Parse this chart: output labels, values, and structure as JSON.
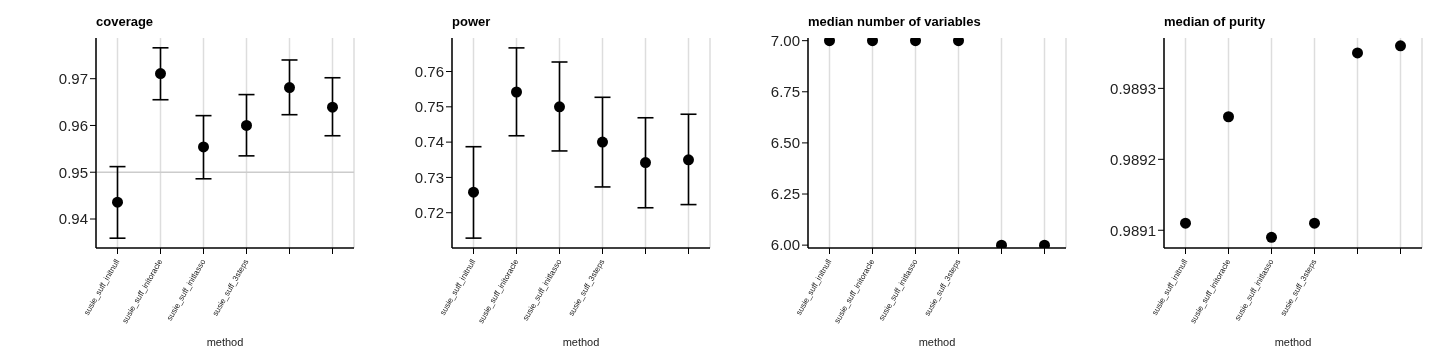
{
  "chart_data": [
    {
      "type": "scatter",
      "title": "coverage",
      "xlabel": "method",
      "categories": [
        "susie_suff_initnull",
        "susie_suff_initoracle",
        "susie_suff_initlasso",
        "susie_suff_3steps",
        null,
        null
      ],
      "values": [
        0.9436,
        0.9711,
        0.9554,
        0.96,
        0.9681,
        0.9639
      ],
      "errors": [
        [
          0.9359,
          0.9512
        ],
        [
          0.9655,
          0.9766
        ],
        [
          0.9486,
          0.9621
        ],
        [
          0.9535,
          0.9666
        ],
        [
          0.9623,
          0.974
        ],
        [
          0.9578,
          0.9702
        ]
      ],
      "color": "#000000",
      "ylim": [
        0.9338,
        0.9787
      ],
      "yticks": [
        0.94,
        0.95,
        0.96,
        0.97
      ],
      "ref_lines": [
        {
          "axis": "y",
          "value": 0.95,
          "color": "#cccccc"
        }
      ],
      "grid": "x",
      "marker": "circle"
    },
    {
      "type": "scatter",
      "title": "power",
      "xlabel": "method",
      "categories": [
        "susie_suff_initnull",
        "susie_suff_initoracle",
        "susie_suff_initlasso",
        "susie_suff_3steps",
        null,
        null
      ],
      "values": [
        0.7258,
        0.7542,
        0.75,
        0.74,
        0.7342,
        0.735
      ],
      "errors": [
        [
          0.7128,
          0.7387
        ],
        [
          0.7418,
          0.7667
        ],
        [
          0.7375,
          0.7627
        ],
        [
          0.7273,
          0.7527
        ],
        [
          0.7214,
          0.7469
        ],
        [
          0.7223,
          0.7479
        ]
      ],
      "color": "#000000",
      "ylim": [
        0.71,
        0.7695
      ],
      "yticks": [
        0.72,
        0.73,
        0.74,
        0.75,
        0.76
      ],
      "grid": "x",
      "marker": "circle"
    },
    {
      "type": "scatter",
      "title": "median number of variables",
      "xlabel": "method",
      "categories": [
        "susie_suff_initnull",
        "susie_suff_initoracle",
        "susie_suff_initlasso",
        "susie_suff_3steps",
        null,
        null
      ],
      "values": [
        7,
        7,
        7,
        7,
        6,
        6
      ],
      "color": "#000000",
      "ylim": [
        5.986,
        7.013
      ],
      "yticks": [
        {
          "value": 6,
          "label": "6.00"
        },
        {
          "value": 6.25,
          "label": "6.25"
        },
        {
          "value": 6.5,
          "label": "6.50"
        },
        {
          "value": 6.75,
          "label": "6.75"
        },
        {
          "value": 7,
          "label": "7.00"
        }
      ],
      "grid": "x",
      "marker": "circle"
    },
    {
      "type": "scatter",
      "title": "median of purity",
      "xlabel": "method",
      "categories": [
        "susie_suff_initnull",
        "susie_suff_initoracle",
        "susie_suff_initlasso",
        "susie_suff_3steps",
        null,
        null
      ],
      "values": [
        0.98911,
        0.98926,
        0.98909,
        0.98911,
        0.98935,
        0.98936
      ],
      "color": "#000000",
      "ylim": [
        0.989075,
        0.989371
      ],
      "yticks": [
        0.9891,
        0.9892,
        0.9893
      ],
      "grid": "x",
      "marker": "circle"
    }
  ]
}
